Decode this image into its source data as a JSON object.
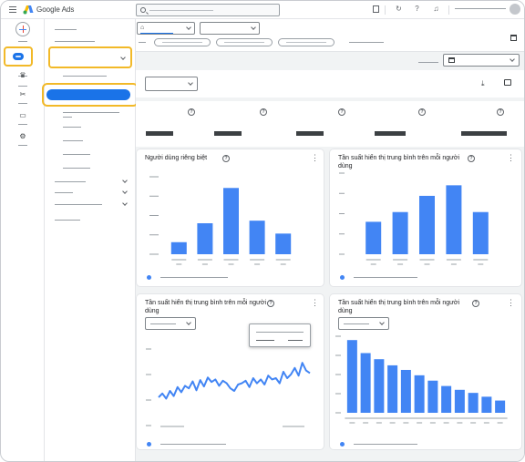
{
  "app": {
    "brand": "Google Ads"
  },
  "colors": {
    "accent": "#1a73e8",
    "bar": "#4285f4",
    "highlight": "#f2b928"
  },
  "cards": {
    "unique_users": {
      "title": "Người dùng riêng biệt"
    },
    "avg_freq_users": {
      "title": "Tần suất hiển thị trung bình trên mỗi người dùng"
    },
    "avg_freq_trend": {
      "title": "Tần suất hiển thị trung bình trên mỗi người dùng"
    },
    "avg_freq_dist": {
      "title": "Tần suất hiển thị trung bình trên mỗi người dùng"
    }
  },
  "chart_data": [
    {
      "type": "bar",
      "categories": [
        "1",
        "2",
        "3",
        "4",
        "5"
      ],
      "values": [
        14,
        36,
        77,
        39,
        24
      ],
      "ylim": [
        0,
        90
      ]
    },
    {
      "type": "bar",
      "categories": [
        "1",
        "2",
        "3",
        "4",
        "5"
      ],
      "values": [
        40,
        52,
        72,
        85,
        52
      ],
      "ylim": [
        0,
        100
      ]
    },
    {
      "type": "line",
      "x": [
        1,
        2,
        3,
        4,
        5,
        6,
        7,
        8,
        9,
        10,
        11,
        12,
        13,
        14,
        15,
        16,
        17,
        18,
        19,
        20,
        21,
        22,
        23,
        24,
        25,
        26,
        27,
        28,
        29,
        30,
        31,
        32,
        33,
        34,
        35,
        36,
        37,
        38,
        39,
        40,
        41
      ],
      "values": [
        30,
        36,
        28,
        40,
        32,
        46,
        38,
        48,
        44,
        55,
        41,
        57,
        47,
        61,
        54,
        58,
        48,
        56,
        52,
        44,
        40,
        50,
        52,
        56,
        46,
        60,
        52,
        58,
        50,
        64,
        58,
        60,
        52,
        70,
        60,
        66,
        76,
        64,
        84,
        72,
        68
      ],
      "ylim": [
        0,
        120
      ]
    },
    {
      "type": "bar",
      "categories": [
        "1",
        "2",
        "3",
        "4",
        "5",
        "6",
        "7",
        "8",
        "9",
        "10",
        "11",
        "12"
      ],
      "values": [
        95,
        78,
        70,
        62,
        56,
        49,
        42,
        35,
        30,
        26,
        21,
        16
      ],
      "ylim": [
        0,
        100
      ]
    }
  ]
}
